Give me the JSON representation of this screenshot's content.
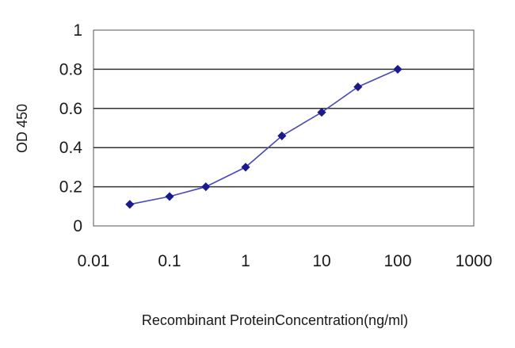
{
  "chart_data": {
    "type": "line",
    "xlabel": "Recombinant ProteinConcentration(ng/ml)",
    "ylabel": "OD 450",
    "x_scale": "log",
    "xlim": [
      0.01,
      1000
    ],
    "ylim": [
      0,
      1
    ],
    "x_ticks": [
      0.01,
      0.1,
      1,
      10,
      100,
      1000
    ],
    "x_tick_labels": [
      "0.01",
      "0.1",
      "1",
      "10",
      "100",
      "1000"
    ],
    "y_ticks": [
      0,
      0.2,
      0.4,
      0.6,
      0.8,
      1
    ],
    "y_tick_labels": [
      "0",
      "0.2",
      "0.4",
      "0.6",
      "0.8",
      "1"
    ],
    "grid": "horizontal",
    "legend": "none",
    "series": [
      {
        "x": [
          0.03,
          0.1,
          0.3,
          1,
          3,
          10,
          30,
          100
        ],
        "y": [
          0.11,
          0.15,
          0.2,
          0.3,
          0.46,
          0.58,
          0.71,
          0.8
        ],
        "color": "#1a1a8c",
        "marker": "diamond"
      }
    ],
    "colors": {
      "line": "#4a4ab8",
      "marker": "#1a1a8c",
      "gridline": "#333333",
      "plot_border": "#555555"
    }
  }
}
